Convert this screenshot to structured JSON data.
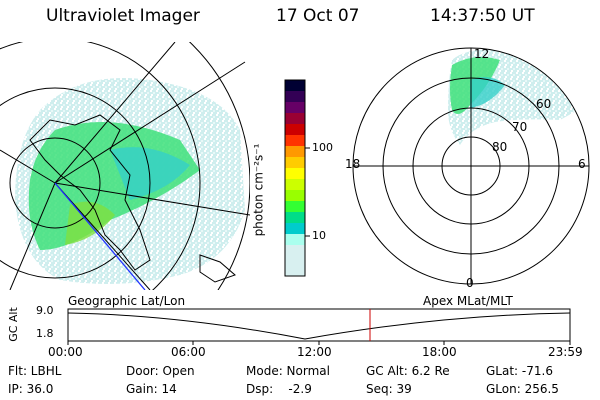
{
  "header": {
    "instrument": "Ultraviolet Imager",
    "date": "17 Oct 07",
    "time": "14:37:50 UT"
  },
  "colorbar": {
    "label": "photon cm⁻²s⁻¹",
    "ticks": [
      "100",
      "10"
    ],
    "colors": [
      "#000033",
      "#330055",
      "#660066",
      "#990033",
      "#cc0000",
      "#ff3300",
      "#ff9900",
      "#ffcc00",
      "#ffff00",
      "#ccff00",
      "#99ff00",
      "#33ff33",
      "#00dd88",
      "#00cccc",
      "#aaffee",
      "#d8f0f0"
    ]
  },
  "polar": {
    "mlt_labels": {
      "top": "12",
      "left": "18",
      "right": "6",
      "bottom": "0"
    },
    "lat_labels": [
      "60",
      "70",
      "80"
    ]
  },
  "projections": {
    "left": "Geographic Lat/Lon",
    "right": "Apex MLat/MLT"
  },
  "gc_plot": {
    "ylabel": "GC Alt",
    "yticks": [
      "9.0",
      "1.8"
    ],
    "xticks": [
      "00:00",
      "06:00",
      "12:00",
      "18:00",
      "23:59"
    ]
  },
  "status": {
    "flt": "Flt: LBHL",
    "ip": "IP: 36.0",
    "door": "Door: Open",
    "gain": "Gain: 14",
    "mode": "Mode: Normal",
    "dsp": "Dsp:    -2.9",
    "gcalt": "GC Alt: 6.2 Re",
    "seq": "Seq: 39",
    "glat": "GLat: -71.6",
    "glon": "GLon: 256.5"
  }
}
